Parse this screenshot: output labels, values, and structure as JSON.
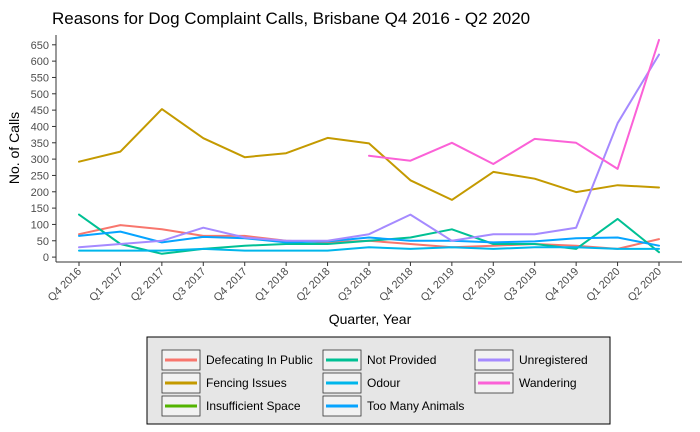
{
  "chart_data": {
    "type": "line",
    "title": "Reasons for Dog Complaint Calls, Brisbane Q4 2016 - Q2 2020",
    "xlabel": "Quarter, Year",
    "ylabel": "No. of Calls",
    "categories": [
      "Q4 2016",
      "Q1 2017",
      "Q2 2017",
      "Q3 2017",
      "Q4 2017",
      "Q1 2018",
      "Q2 2018",
      "Q3 2018",
      "Q4 2018",
      "Q1 2019",
      "Q2 2019",
      "Q3 2019",
      "Q4 2019",
      "Q1 2020",
      "Q2 2020"
    ],
    "ylim": [
      -15,
      680
    ],
    "yticks": [
      0,
      50,
      100,
      150,
      200,
      250,
      300,
      350,
      400,
      450,
      500,
      550,
      600,
      650
    ],
    "grid": false,
    "legend": "bottom",
    "series": [
      {
        "name": "Defecating In Public",
        "color": "#F8766D",
        "values": [
          70,
          98,
          85,
          65,
          65,
          50,
          45,
          50,
          40,
          30,
          35,
          40,
          35,
          25,
          55
        ]
      },
      {
        "name": "Fencing Issues",
        "color": "#C49A00",
        "values": [
          292,
          323,
          453,
          364,
          306,
          318,
          365,
          348,
          235,
          175,
          261,
          240,
          199,
          220,
          213
        ]
      },
      {
        "name": "Insufficient Space",
        "color": "#53B400",
        "values": [
          null,
          null,
          null,
          null,
          null,
          null,
          null,
          null,
          null,
          null,
          null,
          null,
          null,
          null,
          null
        ]
      },
      {
        "name": "Not Provided",
        "color": "#00C094",
        "values": [
          130,
          40,
          10,
          25,
          35,
          40,
          40,
          50,
          60,
          85,
          40,
          40,
          25,
          117,
          15
        ]
      },
      {
        "name": "Odour",
        "color": "#00B6EB",
        "values": [
          20,
          20,
          20,
          25,
          20,
          20,
          20,
          30,
          25,
          30,
          25,
          30,
          30,
          25,
          25
        ]
      },
      {
        "name": "Too Many Animals",
        "color": "#06A4FF",
        "values": [
          65,
          78,
          45,
          62,
          58,
          45,
          48,
          60,
          50,
          50,
          45,
          48,
          58,
          60,
          35
        ]
      },
      {
        "name": "Unregistered",
        "color": "#A58AFF",
        "values": [
          30,
          40,
          50,
          90,
          60,
          50,
          50,
          70,
          130,
          50,
          70,
          70,
          90,
          410,
          620
        ]
      },
      {
        "name": "Wandering",
        "color": "#FB61D7",
        "values": [
          null,
          null,
          null,
          null,
          null,
          null,
          null,
          310,
          295,
          350,
          285,
          362,
          350,
          270,
          665
        ]
      }
    ]
  }
}
